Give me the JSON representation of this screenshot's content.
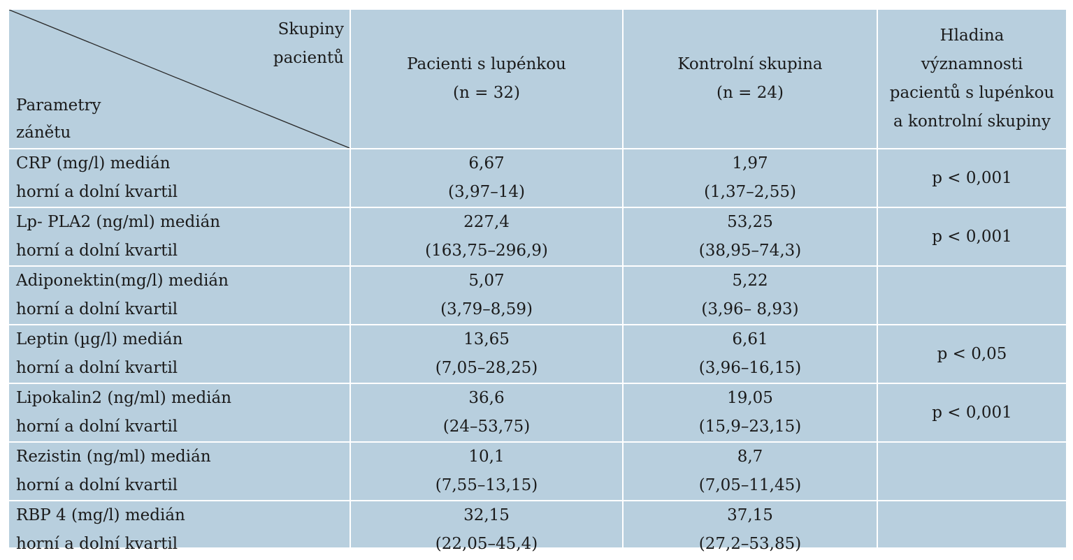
{
  "header": {
    "corner_top": [
      "Skupiny",
      "pacientů"
    ],
    "corner_bottom": [
      "Parametry",
      "zánětu"
    ],
    "col_psoriasis": [
      "Pacienti s lupénkou",
      "(n = 32)"
    ],
    "col_control": [
      "Kontrolní skupina",
      "(n = 24)"
    ],
    "col_significance": [
      "Hladina",
      "významnosti",
      "pacientů s lupénkou",
      "a kontrolní skupiny"
    ]
  },
  "rows": [
    {
      "param": "CRP (mg/l) medián",
      "sub": "horní a dolní kvartil",
      "psor_median": "6,67",
      "psor_iqr": "(3,97–14)",
      "ctrl_median": "1,97",
      "ctrl_iqr": "(1,37–2,55)",
      "p": "p < 0,001"
    },
    {
      "param": "Lp- PLA2 (ng/ml) medián",
      "sub": "horní a dolní kvartil",
      "psor_median": "227,4",
      "psor_iqr": "(163,75–296,9)",
      "ctrl_median": "53,25",
      "ctrl_iqr": "(38,95–74,3)",
      "p": "p < 0,001"
    },
    {
      "param": "Adiponektin(mg/l) medián",
      "sub": "horní a dolní kvartil",
      "psor_median": "5,07",
      "psor_iqr": "(3,79–8,59)",
      "ctrl_median": "5,22",
      "ctrl_iqr": "(3,96– 8,93)",
      "p": ""
    },
    {
      "param": "Leptin (µg/l) medián",
      "sub": "horní a dolní kvartil",
      "psor_median": "13,65",
      "psor_iqr": "(7,05–28,25)",
      "ctrl_median": "6,61",
      "ctrl_iqr": "(3,96–16,15)",
      "p": "p < 0,05"
    },
    {
      "param": "Lipokalin2 (ng/ml) medián",
      "sub": "horní a dolní kvartil",
      "psor_median": "36,6",
      "psor_iqr": "(24–53,75)",
      "ctrl_median": "19,05",
      "ctrl_iqr": "(15,9–23,15)",
      "p": "p < 0,001"
    },
    {
      "param": "Rezistin (ng/ml) medián",
      "sub": "horní a dolní kvartil",
      "psor_median": "10,1",
      "psor_iqr": "(7,55–13,15)",
      "ctrl_median": "8,7",
      "ctrl_iqr": "(7,05–11,45)",
      "p": ""
    },
    {
      "param": "RBP 4 (mg/l) medián",
      "sub": "horní a dolní kvartil",
      "psor_median": "32,15",
      "psor_iqr": "(22,05–45,4)",
      "ctrl_median": "37,15",
      "ctrl_iqr": "(27,2–53,85)",
      "p": ""
    }
  ],
  "colors": {
    "cell_background": "#b8cfde",
    "border": "#ffffff",
    "text": "#1a1a1a"
  }
}
